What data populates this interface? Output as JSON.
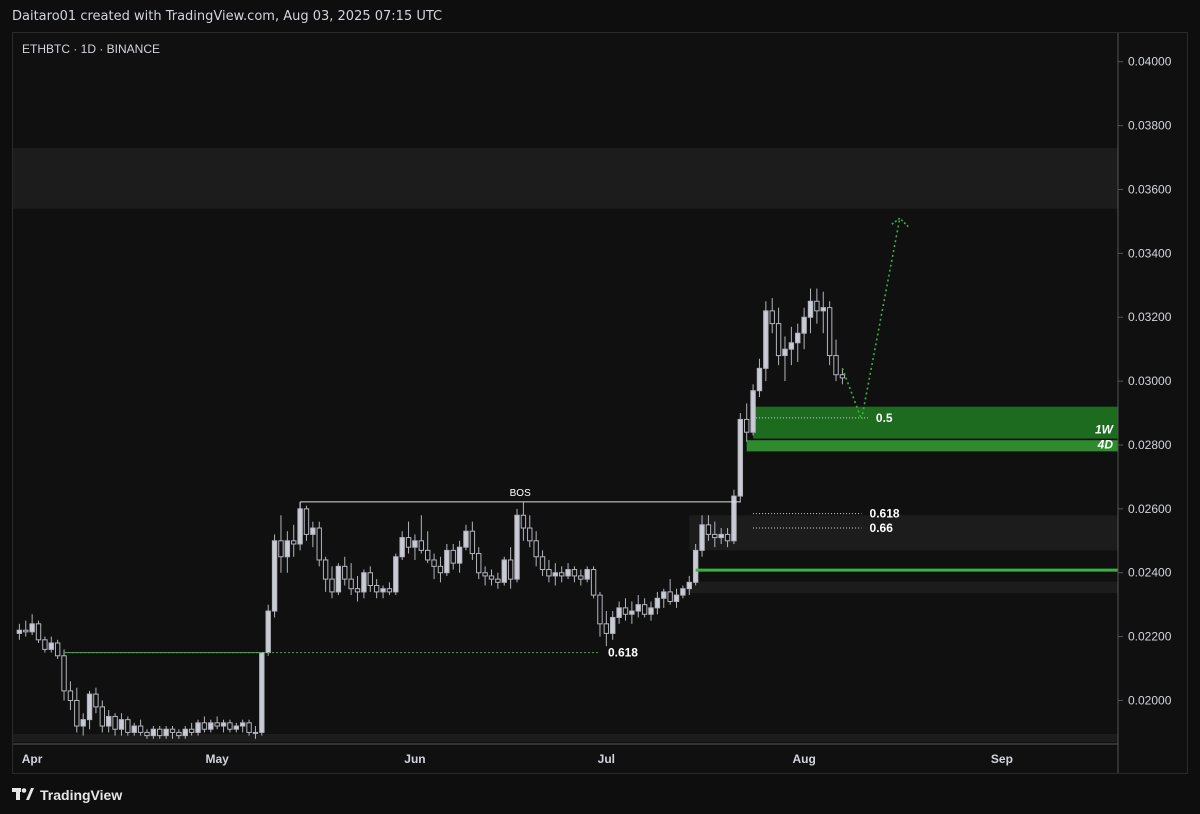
{
  "header": {
    "caption": "Daitaro01 created with TradingView.com, Aug 03, 2025 07:15 UTC"
  },
  "symbol_line": "ETHBTC · 1D · BINANCE",
  "footer": {
    "brand": "TradingView",
    "logo_icon": "tradingview-logo-icon"
  },
  "colors": {
    "background": "#101010",
    "candle": "#b2b5be",
    "green_zone": "#2e8b2e",
    "green_line": "#3cb043",
    "projection": "#3cb043",
    "grey_zone": "#1c1c1c"
  },
  "chart_data": {
    "type": "candlestick",
    "symbol": "ETHBTC",
    "interval": "1D",
    "exchange": "BINANCE",
    "x_axis_labels": [
      "Apr",
      "May",
      "Jun",
      "Jul",
      "Aug",
      "Sep"
    ],
    "x_axis_dates": [
      "2025-04-01",
      "2025-05-01",
      "2025-06-01",
      "2025-07-01",
      "2025-08-01",
      "2025-09-01"
    ],
    "ylim": [
      0.0187,
      0.0409
    ],
    "y_ticks": [
      "0.04000",
      "0.03800",
      "0.03600",
      "0.03400",
      "0.03200",
      "0.03000",
      "0.02800",
      "0.02600",
      "0.02400",
      "0.02200",
      "0.02000"
    ],
    "y_tick_values": [
      0.04,
      0.038,
      0.036,
      0.034,
      0.032,
      0.03,
      0.028,
      0.026,
      0.024,
      0.022,
      0.02
    ],
    "candles": [
      [
        "2025-03-31",
        0.0221,
        0.0224,
        0.0219,
        0.0222
      ],
      [
        "2025-04-01",
        0.0222,
        0.0225,
        0.022,
        0.02215
      ],
      [
        "2025-04-02",
        0.02215,
        0.0227,
        0.02205,
        0.0224
      ],
      [
        "2025-04-03",
        0.0224,
        0.0225,
        0.0218,
        0.0219
      ],
      [
        "2025-04-04",
        0.0219,
        0.022,
        0.0215,
        0.0216
      ],
      [
        "2025-04-05",
        0.0216,
        0.022,
        0.0215,
        0.0218
      ],
      [
        "2025-04-06",
        0.0218,
        0.0219,
        0.0213,
        0.0214
      ],
      [
        "2025-04-07",
        0.0214,
        0.0216,
        0.02,
        0.0203
      ],
      [
        "2025-04-08",
        0.0203,
        0.0206,
        0.0197,
        0.02
      ],
      [
        "2025-04-09",
        0.02,
        0.0204,
        0.019,
        0.0192
      ],
      [
        "2025-04-10",
        0.0192,
        0.0196,
        0.0189,
        0.0194
      ],
      [
        "2025-04-11",
        0.0194,
        0.0203,
        0.0191,
        0.0202
      ],
      [
        "2025-04-12",
        0.0202,
        0.0204,
        0.0196,
        0.0198
      ],
      [
        "2025-04-13",
        0.0198,
        0.02,
        0.019,
        0.0192
      ],
      [
        "2025-04-14",
        0.0192,
        0.0197,
        0.019,
        0.0195
      ],
      [
        "2025-04-15",
        0.0195,
        0.0196,
        0.0189,
        0.0191
      ],
      [
        "2025-04-16",
        0.0191,
        0.0196,
        0.0189,
        0.0194
      ],
      [
        "2025-04-17",
        0.0194,
        0.0195,
        0.0189,
        0.019
      ],
      [
        "2025-04-18",
        0.019,
        0.0193,
        0.0189,
        0.0192
      ],
      [
        "2025-04-19",
        0.0192,
        0.0194,
        0.0189,
        0.019
      ],
      [
        "2025-04-20",
        0.019,
        0.0191,
        0.0188,
        0.0189
      ],
      [
        "2025-04-21",
        0.0189,
        0.0192,
        0.0188,
        0.0191
      ],
      [
        "2025-04-22",
        0.0191,
        0.0192,
        0.0188,
        0.0189
      ],
      [
        "2025-04-23",
        0.0189,
        0.0192,
        0.0188,
        0.0191
      ],
      [
        "2025-04-24",
        0.0191,
        0.0192,
        0.0188,
        0.019
      ],
      [
        "2025-04-25",
        0.019,
        0.0191,
        0.0188,
        0.0189
      ],
      [
        "2025-04-26",
        0.0189,
        0.0192,
        0.0188,
        0.0191
      ],
      [
        "2025-04-27",
        0.0191,
        0.0193,
        0.0189,
        0.019
      ],
      [
        "2025-04-28",
        0.019,
        0.0194,
        0.0189,
        0.0193
      ],
      [
        "2025-04-29",
        0.0193,
        0.0195,
        0.019,
        0.0191
      ],
      [
        "2025-04-30",
        0.0191,
        0.0194,
        0.019,
        0.0193
      ],
      [
        "2025-05-01",
        0.0193,
        0.0195,
        0.0191,
        0.0192
      ],
      [
        "2025-05-02",
        0.0192,
        0.0194,
        0.019,
        0.0193
      ],
      [
        "2025-05-03",
        0.0193,
        0.0194,
        0.019,
        0.0191
      ],
      [
        "2025-05-04",
        0.0191,
        0.0193,
        0.019,
        0.0192
      ],
      [
        "2025-05-05",
        0.0192,
        0.0194,
        0.019,
        0.0193
      ],
      [
        "2025-05-06",
        0.0193,
        0.0194,
        0.0189,
        0.019
      ],
      [
        "2025-05-07",
        0.019,
        0.0192,
        0.0188,
        0.019
      ],
      [
        "2025-05-08",
        0.019,
        0.0215,
        0.0189,
        0.0215
      ],
      [
        "2025-05-09",
        0.0215,
        0.023,
        0.0214,
        0.0228
      ],
      [
        "2025-05-10",
        0.0228,
        0.0252,
        0.0226,
        0.025
      ],
      [
        "2025-05-11",
        0.025,
        0.0258,
        0.024,
        0.0245
      ],
      [
        "2025-05-12",
        0.0245,
        0.0253,
        0.024,
        0.025
      ],
      [
        "2025-05-13",
        0.025,
        0.0255,
        0.0245,
        0.0249
      ],
      [
        "2025-05-14",
        0.0249,
        0.0262,
        0.0247,
        0.026
      ],
      [
        "2025-05-15",
        0.026,
        0.0261,
        0.025,
        0.0252
      ],
      [
        "2025-05-16",
        0.0252,
        0.0256,
        0.0248,
        0.0254
      ],
      [
        "2025-05-17",
        0.0254,
        0.0256,
        0.0242,
        0.0244
      ],
      [
        "2025-05-18",
        0.0244,
        0.0245,
        0.0234,
        0.0238
      ],
      [
        "2025-05-19",
        0.0238,
        0.0242,
        0.0232,
        0.0234
      ],
      [
        "2025-05-20",
        0.0234,
        0.0243,
        0.0233,
        0.0242
      ],
      [
        "2025-05-21",
        0.0242,
        0.0245,
        0.0236,
        0.0238
      ],
      [
        "2025-05-22",
        0.0238,
        0.0243,
        0.0233,
        0.0235
      ],
      [
        "2025-05-23",
        0.0235,
        0.0239,
        0.0231,
        0.0234
      ],
      [
        "2025-05-24",
        0.0234,
        0.0241,
        0.0232,
        0.024
      ],
      [
        "2025-05-25",
        0.024,
        0.0242,
        0.0234,
        0.0236
      ],
      [
        "2025-05-26",
        0.0236,
        0.0238,
        0.0232,
        0.0234
      ],
      [
        "2025-05-27",
        0.0234,
        0.0236,
        0.0232,
        0.0235
      ],
      [
        "2025-05-28",
        0.0235,
        0.0237,
        0.0233,
        0.0234
      ],
      [
        "2025-05-29",
        0.0234,
        0.0246,
        0.0233,
        0.0245
      ],
      [
        "2025-05-30",
        0.0245,
        0.0253,
        0.0244,
        0.0251
      ],
      [
        "2025-05-31",
        0.0251,
        0.0256,
        0.0246,
        0.0248
      ],
      [
        "2025-06-01",
        0.0248,
        0.0252,
        0.0244,
        0.025
      ],
      [
        "2025-06-02",
        0.025,
        0.0258,
        0.0246,
        0.0247
      ],
      [
        "2025-06-03",
        0.0247,
        0.0253,
        0.0243,
        0.0244
      ],
      [
        "2025-06-04",
        0.0244,
        0.0246,
        0.0238,
        0.0242
      ],
      [
        "2025-06-05",
        0.0242,
        0.0245,
        0.0237,
        0.024
      ],
      [
        "2025-06-06",
        0.024,
        0.0249,
        0.0239,
        0.0247
      ],
      [
        "2025-06-07",
        0.0247,
        0.0249,
        0.0241,
        0.0243
      ],
      [
        "2025-06-08",
        0.0243,
        0.025,
        0.024,
        0.0248
      ],
      [
        "2025-06-09",
        0.0248,
        0.0255,
        0.0247,
        0.0253
      ],
      [
        "2025-06-10",
        0.0253,
        0.0256,
        0.0244,
        0.0246
      ],
      [
        "2025-06-11",
        0.0246,
        0.0248,
        0.0238,
        0.024
      ],
      [
        "2025-06-12",
        0.024,
        0.0242,
        0.0236,
        0.0239
      ],
      [
        "2025-06-13",
        0.0239,
        0.0241,
        0.0236,
        0.0238
      ],
      [
        "2025-06-14",
        0.0238,
        0.024,
        0.0235,
        0.0237
      ],
      [
        "2025-06-15",
        0.0237,
        0.0245,
        0.0236,
        0.0244
      ],
      [
        "2025-06-16",
        0.0244,
        0.0248,
        0.0235,
        0.0238
      ],
      [
        "2025-06-17",
        0.0238,
        0.026,
        0.0237,
        0.0258
      ],
      [
        "2025-06-18",
        0.0258,
        0.0262,
        0.025,
        0.0254
      ],
      [
        "2025-06-19",
        0.0254,
        0.0258,
        0.0248,
        0.025
      ],
      [
        "2025-06-20",
        0.025,
        0.0253,
        0.0242,
        0.0245
      ],
      [
        "2025-06-21",
        0.0245,
        0.0247,
        0.0239,
        0.0241
      ],
      [
        "2025-06-22",
        0.0241,
        0.0244,
        0.0237,
        0.0239
      ],
      [
        "2025-06-23",
        0.0239,
        0.0243,
        0.0236,
        0.024
      ],
      [
        "2025-06-24",
        0.024,
        0.0242,
        0.0237,
        0.0239
      ],
      [
        "2025-06-25",
        0.0239,
        0.0243,
        0.0238,
        0.0241
      ],
      [
        "2025-06-26",
        0.0241,
        0.0242,
        0.0237,
        0.0239
      ],
      [
        "2025-06-27",
        0.0239,
        0.0241,
        0.0236,
        0.0238
      ],
      [
        "2025-06-28",
        0.0238,
        0.0242,
        0.0237,
        0.0241
      ],
      [
        "2025-06-29",
        0.0241,
        0.0242,
        0.0232,
        0.0233
      ],
      [
        "2025-06-30",
        0.0233,
        0.0234,
        0.022,
        0.0224
      ],
      [
        "2025-07-01",
        0.0224,
        0.0228,
        0.0217,
        0.0221
      ],
      [
        "2025-07-02",
        0.0221,
        0.0228,
        0.0219,
        0.0226
      ],
      [
        "2025-07-03",
        0.0226,
        0.0231,
        0.0224,
        0.0229
      ],
      [
        "2025-07-04",
        0.0229,
        0.0232,
        0.0225,
        0.0227
      ],
      [
        "2025-07-05",
        0.0227,
        0.0231,
        0.0224,
        0.0228
      ],
      [
        "2025-07-06",
        0.0228,
        0.0233,
        0.0226,
        0.023
      ],
      [
        "2025-07-07",
        0.023,
        0.0232,
        0.0226,
        0.0227
      ],
      [
        "2025-07-08",
        0.0227,
        0.0231,
        0.0225,
        0.0229
      ],
      [
        "2025-07-09",
        0.0229,
        0.0234,
        0.0227,
        0.0232
      ],
      [
        "2025-07-10",
        0.0232,
        0.0235,
        0.0229,
        0.0234
      ],
      [
        "2025-07-11",
        0.0234,
        0.0238,
        0.023,
        0.0231
      ],
      [
        "2025-07-12",
        0.0231,
        0.0235,
        0.0229,
        0.0233
      ],
      [
        "2025-07-13",
        0.0233,
        0.0236,
        0.0232,
        0.0235
      ],
      [
        "2025-07-14",
        0.0235,
        0.0239,
        0.0233,
        0.0237
      ],
      [
        "2025-07-15",
        0.0237,
        0.0249,
        0.0236,
        0.0247
      ],
      [
        "2025-07-16",
        0.0247,
        0.0258,
        0.0245,
        0.0255
      ],
      [
        "2025-07-17",
        0.0255,
        0.0258,
        0.025,
        0.0252
      ],
      [
        "2025-07-18",
        0.0252,
        0.0256,
        0.0248,
        0.0251
      ],
      [
        "2025-07-19",
        0.0251,
        0.0254,
        0.0249,
        0.0252
      ],
      [
        "2025-07-20",
        0.0252,
        0.0254,
        0.0248,
        0.025
      ],
      [
        "2025-07-21",
        0.025,
        0.0266,
        0.0249,
        0.0264
      ],
      [
        "2025-07-22",
        0.0264,
        0.029,
        0.0262,
        0.0288
      ],
      [
        "2025-07-23",
        0.0288,
        0.0293,
        0.0281,
        0.0284
      ],
      [
        "2025-07-24",
        0.0284,
        0.0299,
        0.0283,
        0.0297
      ],
      [
        "2025-07-25",
        0.0297,
        0.0307,
        0.0295,
        0.0304
      ],
      [
        "2025-07-26",
        0.0304,
        0.0325,
        0.03,
        0.0322
      ],
      [
        "2025-07-27",
        0.0322,
        0.0326,
        0.0315,
        0.0318
      ],
      [
        "2025-07-28",
        0.0318,
        0.0323,
        0.0305,
        0.0308
      ],
      [
        "2025-07-29",
        0.0308,
        0.0314,
        0.03,
        0.031
      ],
      [
        "2025-07-30",
        0.031,
        0.0317,
        0.0305,
        0.0312
      ],
      [
        "2025-07-31",
        0.0312,
        0.0318,
        0.0306,
        0.0315
      ],
      [
        "2025-08-01",
        0.0315,
        0.0323,
        0.031,
        0.032
      ],
      [
        "2025-08-02",
        0.032,
        0.0329,
        0.0315,
        0.0325
      ],
      [
        "2025-08-03",
        0.0325,
        0.0329,
        0.0318,
        0.0322
      ],
      [
        "2025-08-04",
        0.0322,
        0.0328,
        0.0315,
        0.0323
      ],
      [
        "2025-08-05",
        0.0323,
        0.0325,
        0.0305,
        0.0308
      ],
      [
        "2025-08-06",
        0.0308,
        0.0313,
        0.03,
        0.0302
      ],
      [
        "2025-08-07",
        0.0302,
        0.0304,
        0.0299,
        0.0301
      ]
    ],
    "zones": [
      {
        "label": "1W",
        "from": 0.0282,
        "to": 0.0292,
        "style": "green"
      },
      {
        "label": "4D",
        "from": 0.0278,
        "to": 0.02815,
        "style": "green-solid"
      },
      {
        "from": 0.0247,
        "to": 0.0258,
        "style": "grey"
      },
      {
        "from": 0.02336,
        "to": 0.02372,
        "style": "grey"
      },
      {
        "from": 0.0354,
        "to": 0.0373,
        "style": "grey"
      },
      {
        "from": 0.0187,
        "to": 0.01895,
        "style": "grey"
      }
    ],
    "levels": [
      {
        "label": "BOS",
        "value": 0.02622,
        "from_date": "2025-05-14",
        "to_date": "2025-07-22"
      },
      {
        "label": "0.618",
        "value": 0.0215,
        "from_date": "2025-04-07",
        "to_date": "2025-06-30"
      },
      {
        "label": "0.5",
        "value": 0.02885,
        "from_date": "2025-07-24",
        "to_date": "2025-08-11"
      },
      {
        "label": "0.618",
        "value": 0.02585,
        "from_date": "2025-07-24",
        "to_date": "2025-08-10"
      },
      {
        "label": "0.66",
        "value": 0.0254,
        "from_date": "2025-07-24",
        "to_date": "2025-08-10"
      },
      {
        "value": 0.02408,
        "from_date": "2025-07-15",
        "to_date": "2025-09-20",
        "style": "green-line"
      }
    ],
    "projection": [
      [
        "2025-08-07",
        0.0304
      ],
      [
        "2025-08-10",
        0.0288
      ],
      [
        "2025-08-16",
        0.0351
      ]
    ]
  }
}
